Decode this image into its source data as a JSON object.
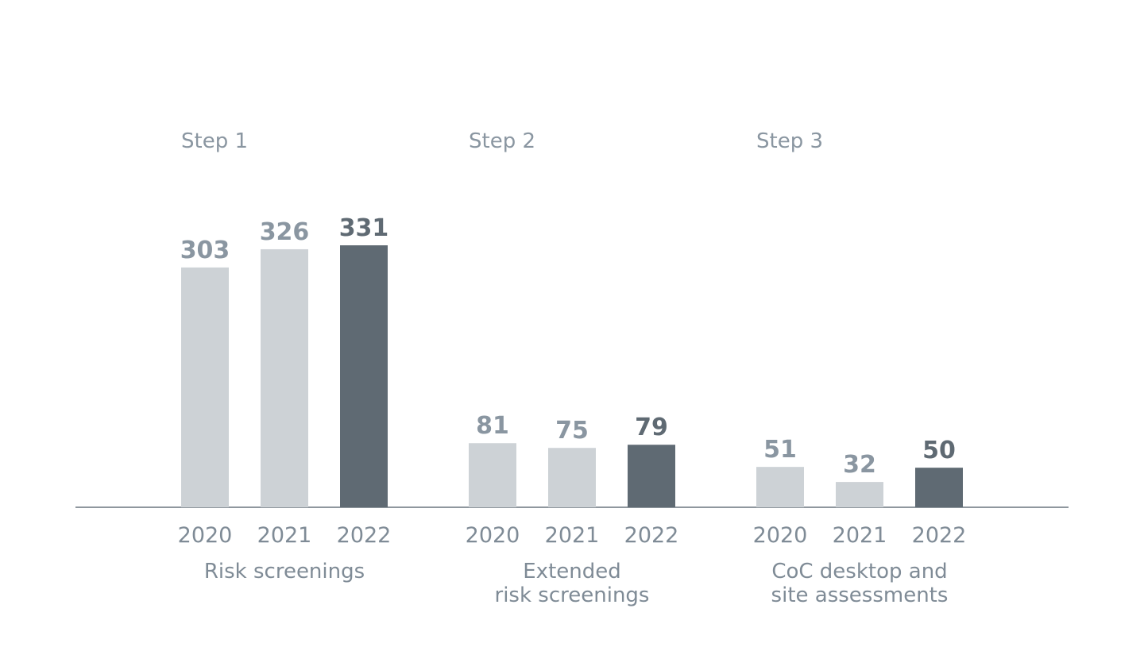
{
  "chart_data": {
    "type": "bar",
    "series_names": [
      "2020",
      "2021",
      "2022"
    ],
    "groups": [
      {
        "step": "Step 1",
        "label_lines": [
          "Risk screenings"
        ],
        "values": [
          303,
          326,
          331
        ]
      },
      {
        "step": "Step 2",
        "label_lines": [
          "Extended",
          "risk screenings"
        ],
        "values": [
          81,
          75,
          79
        ]
      },
      {
        "step": "Step 3",
        "label_lines": [
          "CoC desktop and",
          "site assessments"
        ],
        "values": [
          51,
          32,
          50
        ]
      }
    ],
    "ylim": [
      0,
      331
    ],
    "grid": false,
    "colors": {
      "past": "#cdd2d6",
      "current": "#5f6a73",
      "axis": "#8f979e"
    }
  }
}
